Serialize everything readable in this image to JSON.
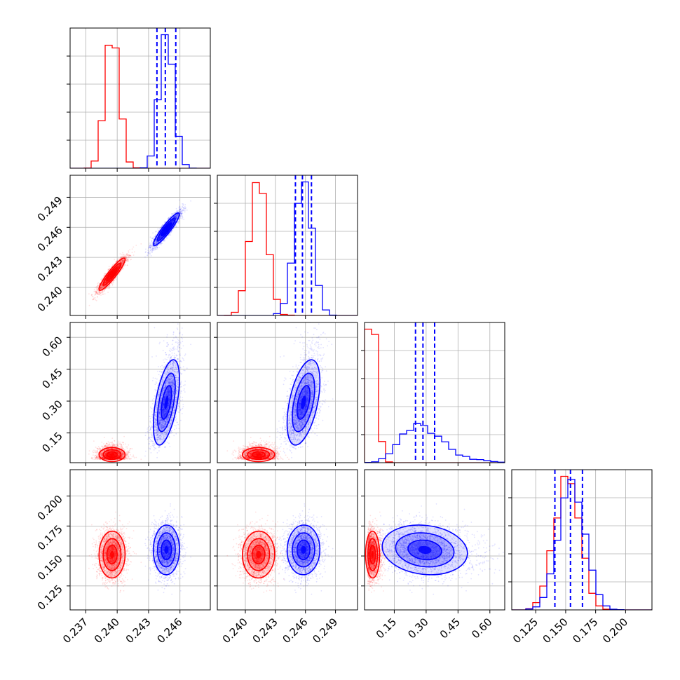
{
  "chart_data": {
    "type": "corner",
    "parameters": 4,
    "colors": {
      "model_a": "#ff0000",
      "model_b": "#0000ff"
    },
    "axes": [
      {
        "index": 0,
        "range": [
          0.2355,
          0.2489
        ],
        "ticks": [
          0.237,
          0.24,
          0.243,
          0.246
        ],
        "tick_labels": [
          "0.237",
          "0.240",
          "0.243",
          "0.246"
        ]
      },
      {
        "index": 1,
        "range": [
          0.2372,
          0.2512
        ],
        "ticks": [
          0.24,
          0.243,
          0.246,
          0.249
        ],
        "tick_labels": [
          "0.240",
          "0.243",
          "0.246",
          "0.249"
        ]
      },
      {
        "index": 2,
        "range": [
          0.01,
          0.67
        ],
        "ticks": [
          0.15,
          0.3,
          0.45,
          0.6
        ],
        "tick_labels": [
          "0.15",
          "0.30",
          "0.45",
          "0.60"
        ]
      },
      {
        "index": 3,
        "range": [
          0.105,
          0.222
        ],
        "ticks": [
          0.125,
          0.15,
          0.175,
          0.2
        ],
        "tick_labels": [
          "0.125",
          "0.150",
          "0.175",
          "0.200"
        ]
      }
    ],
    "series": [
      {
        "color": "#ff0000",
        "means": [
          0.2395,
          0.2413,
          0.05,
          0.151
        ],
        "sds": [
          0.00065,
          0.00085,
          0.018,
          0.01
        ],
        "correlations": [
          [
            0,
            1,
            0.92
          ],
          [
            1,
            3,
            0.1
          ]
        ],
        "quantiles": null,
        "hist_shape": [
          "gaussian",
          "gaussian",
          "decay",
          "gaussian"
        ]
      },
      {
        "color": "#0000ff",
        "means": [
          0.2447,
          0.2458,
          0.28,
          0.155
        ],
        "sds": [
          0.00065,
          0.00085,
          0.055,
          0.011
        ],
        "correlations": [
          [
            0,
            1,
            0.92
          ],
          [
            0,
            2,
            0.55
          ],
          [
            1,
            2,
            0.55
          ],
          [
            0,
            3,
            -0.1
          ],
          [
            2,
            3,
            -0.15
          ]
        ],
        "quantiles": [
          [
            0.2438,
            0.2446,
            0.2456
          ],
          [
            0.245,
            0.2457,
            0.2466
          ],
          [
            0.25,
            0.285,
            0.34
          ],
          [
            0.141,
            0.154,
            0.164
          ]
        ],
        "hist_shape": [
          "gaussian",
          "gaussian",
          "skewed",
          "gaussian"
        ]
      }
    ]
  }
}
